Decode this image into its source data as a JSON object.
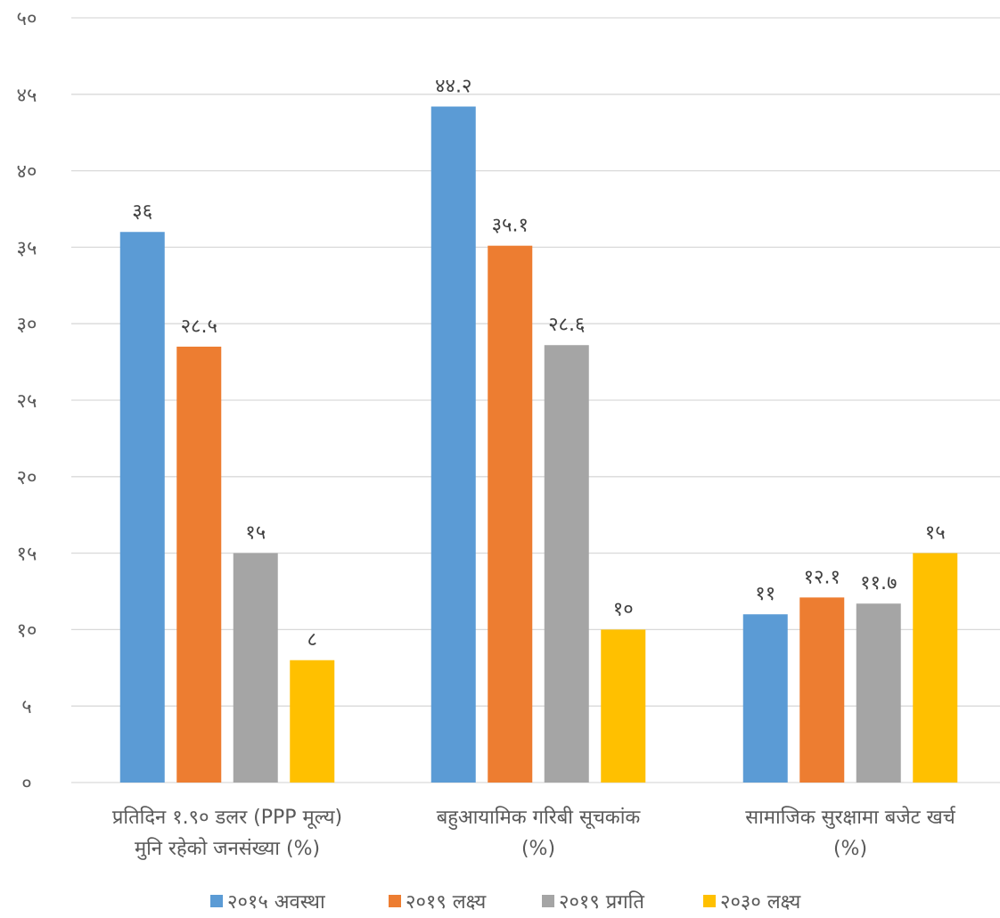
{
  "chart_data": {
    "type": "bar",
    "categories": [
      [
        "प्रतिदिन १.९० डलर (PPP मूल्य)",
        "मुनि रहेको जनसंख्या (%)"
      ],
      [
        "बहुआयामिक गरिबी सूचकांक",
        "(%)"
      ],
      [
        "सामाजिक सुरक्षामा बजेट खर्च",
        "(%)"
      ]
    ],
    "series": [
      {
        "name": "२०१५ अवस्था",
        "color": "#5b9bd5",
        "values": [
          36,
          44.2,
          11
        ],
        "labels": [
          "३६",
          "४४.२",
          "११"
        ]
      },
      {
        "name": "२०१९ लक्ष्य",
        "color": "#ed7d31",
        "values": [
          28.5,
          35.1,
          12.1
        ],
        "labels": [
          "२८.५",
          "३५.१",
          "१२.१"
        ]
      },
      {
        "name": "२०१९ प्रगति",
        "color": "#a5a5a5",
        "values": [
          15,
          28.6,
          11.7
        ],
        "labels": [
          "१५",
          "२८.६",
          "११.७"
        ]
      },
      {
        "name": "२०३० लक्ष्य",
        "color": "#ffc000",
        "values": [
          8,
          10,
          15
        ],
        "labels": [
          "८",
          "१०",
          "१५"
        ]
      }
    ],
    "yticks": [
      0,
      5,
      10,
      15,
      20,
      25,
      30,
      35,
      40,
      45,
      50
    ],
    "ytick_labels": [
      "०",
      "५",
      "१०",
      "१५",
      "२०",
      "२५",
      "३०",
      "३५",
      "४०",
      "४५",
      "५०"
    ],
    "ylim": [
      0,
      50
    ],
    "grid": true,
    "legend_position": "bottom"
  }
}
